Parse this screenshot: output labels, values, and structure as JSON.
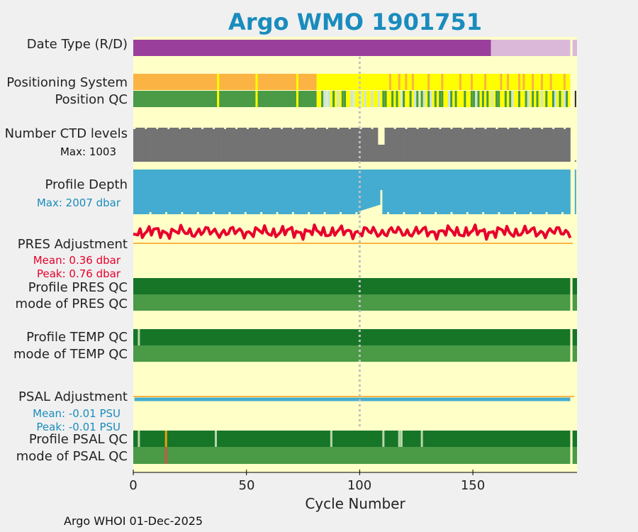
{
  "chart_data": {
    "type": "multi-track summary",
    "title": "Argo WMO 1901751",
    "xlabel": "Cycle Number",
    "xlim": [
      0,
      196
    ],
    "xticks": [
      0,
      50,
      100,
      150
    ],
    "marker_cycle": 100,
    "tracks": {
      "date_type": {
        "label": "Date Type (R/D)",
        "segments": [
          [
            0,
            158,
            "D"
          ],
          [
            158,
            193,
            "R"
          ],
          [
            194,
            196,
            "R"
          ]
        ]
      },
      "positioning": {
        "label": "Positioning System",
        "base_until": 81,
        "breaks": [
          37,
          54,
          72,
          113,
          117,
          120,
          123,
          130,
          136,
          144,
          149,
          155,
          162,
          165,
          170,
          172,
          176,
          180,
          184,
          190
        ]
      },
      "position_qc": {
        "label": "Position QC",
        "light": [
          84,
          86,
          90,
          96,
          102,
          105,
          108,
          118,
          124,
          128,
          131,
          139,
          151,
          158,
          167,
          174,
          180,
          186,
          190
        ],
        "pale": [
          85,
          97,
          100,
          118,
          126
        ],
        "dark": [
          195
        ]
      },
      "ctd_levels": {
        "label": "Number CTD levels",
        "max_label": "Max: 1003",
        "max": 1003,
        "dip_cycles": [
          108,
          109,
          110
        ],
        "end_cycle": 193
      },
      "profile_depth": {
        "label": "Profile Depth",
        "max_label": "Max: 2007 dbar",
        "max": 2007,
        "end_cycle": 193
      },
      "pres_adjustment": {
        "label": "PRES Adjustment",
        "mean_label": "Mean: 0.36 dbar",
        "peak_label": "Peak: 0.76 dbar",
        "mean": 0.36,
        "peak": 0.76,
        "end_cycle": 193
      },
      "profile_pres_qc": {
        "label": "Profile PRES QC"
      },
      "mode_pres_qc": {
        "label": "mode of PRES QC"
      },
      "profile_temp_qc": {
        "label": "Profile TEMP QC",
        "light_cycles": [
          2
        ]
      },
      "mode_temp_qc": {
        "label": "mode of TEMP QC"
      },
      "psal_adjustment": {
        "label": "PSAL Adjustment",
        "mean_label": "Mean: -0.01 PSU",
        "peak_label": "Peak: -0.01 PSU",
        "mean": -0.01,
        "peak": -0.01
      },
      "profile_psal_qc": {
        "label": "Profile PSAL QC",
        "light_cycles": [
          2,
          36,
          87,
          110,
          117,
          118,
          127
        ],
        "flag_cycles": [
          14
        ]
      },
      "mode_psal_qc": {
        "label": "mode of PSAL QC",
        "flag_cycles": [
          14
        ]
      }
    },
    "colors": {
      "bg": "#ffffc8",
      "purple": "#9a3f9c",
      "pink": "#dbb8d9",
      "orange": "#fbb443",
      "yellow": "#ffff00",
      "green": "#4a9a46",
      "darkgreen": "#177528",
      "gray": "#737373",
      "blue": "#44acd0",
      "red": "#e8002c",
      "lightblue": "#c9e2ec",
      "palegreen": "#b8d8a8"
    }
  },
  "footer": "Argo WHOI 01-Dec-2025"
}
